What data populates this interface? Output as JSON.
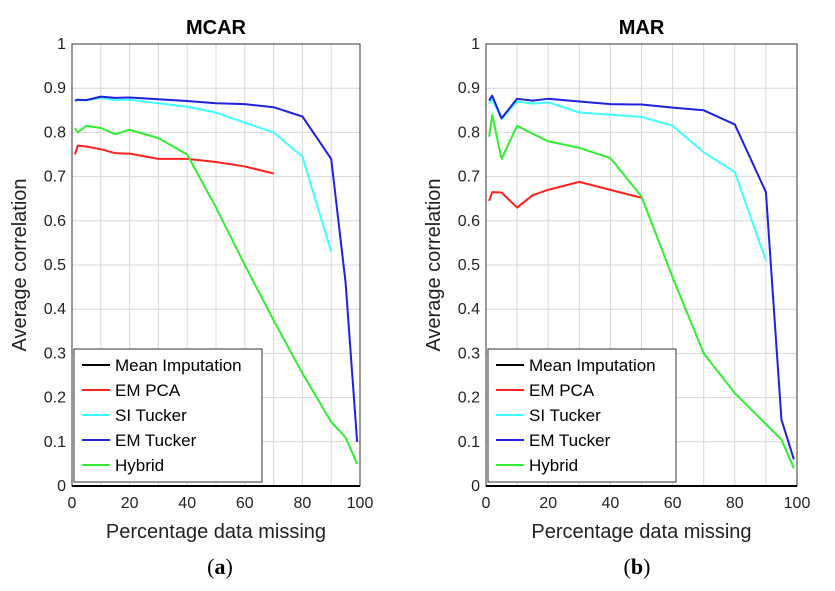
{
  "chart_data": [
    {
      "type": "line",
      "title": "MCAR",
      "xlabel": "Percentage data missing",
      "ylabel": "Average correlation",
      "xlim": [
        0,
        100
      ],
      "ylim": [
        0,
        1
      ],
      "xticks": [
        "0",
        "20",
        "40",
        "60",
        "80",
        "100"
      ],
      "yticks": [
        "0",
        "0.1",
        "0.2",
        "0.3",
        "0.4",
        "0.5",
        "0.6",
        "0.7",
        "0.8",
        "0.9",
        "1"
      ],
      "grid": true,
      "legend_position": "bottom-left",
      "caption": "a",
      "series": [
        {
          "name": "Mean Imputation",
          "color": "#000000",
          "x": [
            0,
            100
          ],
          "y": [
            0,
            0
          ]
        },
        {
          "name": "EM PCA",
          "color": "#ff2020",
          "x": [
            1,
            2,
            5,
            10,
            15,
            20,
            30,
            40,
            50,
            60,
            70
          ],
          "y": [
            0.75,
            0.77,
            0.768,
            0.762,
            0.753,
            0.752,
            0.74,
            0.74,
            0.733,
            0.723,
            0.707
          ]
        },
        {
          "name": "SI Tucker",
          "color": "#40ffff",
          "x": [
            1,
            2,
            5,
            10,
            15,
            20,
            30,
            40,
            50,
            60,
            70,
            80,
            90
          ],
          "y": [
            0.872,
            0.873,
            0.873,
            0.878,
            0.873,
            0.874,
            0.866,
            0.858,
            0.845,
            0.822,
            0.8,
            0.745,
            0.53
          ]
        },
        {
          "name": "EM Tucker",
          "color": "#2020e0",
          "x": [
            1,
            2,
            5,
            10,
            15,
            20,
            30,
            40,
            50,
            60,
            70,
            80,
            90,
            95,
            99
          ],
          "y": [
            0.872,
            0.874,
            0.873,
            0.881,
            0.878,
            0.879,
            0.875,
            0.871,
            0.866,
            0.864,
            0.857,
            0.836,
            0.74,
            0.46,
            0.1
          ]
        },
        {
          "name": "Hybrid",
          "color": "#30ee30",
          "x": [
            1,
            2,
            5,
            10,
            15,
            20,
            30,
            40,
            50,
            60,
            70,
            80,
            90,
            95,
            99
          ],
          "y": [
            0.81,
            0.8,
            0.815,
            0.81,
            0.796,
            0.806,
            0.787,
            0.75,
            0.63,
            0.5,
            0.375,
            0.255,
            0.145,
            0.11,
            0.05
          ]
        }
      ]
    },
    {
      "type": "line",
      "title": "MAR",
      "xlabel": "Percentage data missing",
      "ylabel": "Average correlation",
      "xlim": [
        0,
        100
      ],
      "ylim": [
        0,
        1
      ],
      "xticks": [
        "0",
        "20",
        "40",
        "60",
        "80",
        "100"
      ],
      "yticks": [
        "0",
        "0.1",
        "0.2",
        "0.3",
        "0.4",
        "0.5",
        "0.6",
        "0.7",
        "0.8",
        "0.9",
        "1"
      ],
      "grid": true,
      "legend_position": "bottom-left",
      "caption": "b",
      "series": [
        {
          "name": "Mean Imputation",
          "color": "#000000",
          "x": [
            0,
            100
          ],
          "y": [
            0,
            0
          ]
        },
        {
          "name": "EM PCA",
          "color": "#ff2020",
          "x": [
            1,
            2,
            5,
            10,
            15,
            20,
            30,
            40,
            50
          ],
          "y": [
            0.645,
            0.665,
            0.664,
            0.63,
            0.658,
            0.67,
            0.688,
            0.67,
            0.652
          ]
        },
        {
          "name": "SI Tucker",
          "color": "#40ffff",
          "x": [
            1,
            2,
            5,
            10,
            15,
            20,
            30,
            40,
            50,
            60,
            70,
            80,
            90
          ],
          "y": [
            0.865,
            0.875,
            0.83,
            0.87,
            0.865,
            0.868,
            0.845,
            0.84,
            0.835,
            0.815,
            0.755,
            0.71,
            0.51
          ]
        },
        {
          "name": "EM Tucker",
          "color": "#2020e0",
          "x": [
            1,
            2,
            5,
            10,
            15,
            20,
            30,
            40,
            50,
            60,
            70,
            80,
            90,
            95,
            99
          ],
          "y": [
            0.872,
            0.883,
            0.832,
            0.876,
            0.872,
            0.876,
            0.87,
            0.864,
            0.863,
            0.856,
            0.85,
            0.818,
            0.665,
            0.15,
            0.06
          ]
        },
        {
          "name": "Hybrid",
          "color": "#30ee30",
          "x": [
            1,
            2,
            5,
            10,
            15,
            20,
            30,
            40,
            50,
            60,
            70,
            80,
            90,
            95,
            99
          ],
          "y": [
            0.79,
            0.84,
            0.74,
            0.815,
            0.797,
            0.78,
            0.765,
            0.742,
            0.655,
            0.472,
            0.3,
            0.21,
            0.14,
            0.105,
            0.04
          ]
        }
      ]
    }
  ]
}
